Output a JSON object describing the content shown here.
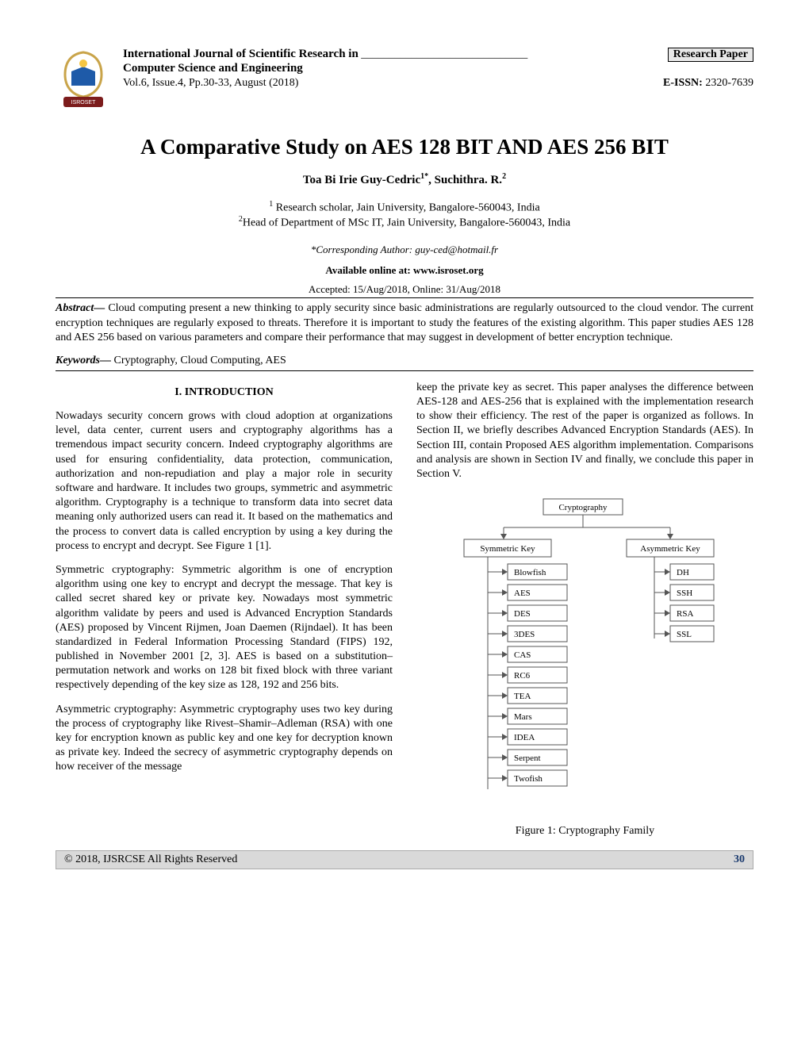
{
  "header": {
    "journal_name": "International Journal of Scientific Research in",
    "underline_fill": "______________________________",
    "paper_type": "Research Paper",
    "field": "Computer Science and Engineering",
    "volume_line": "Vol.6, Issue.4, Pp.30-33, August (2018)",
    "eissn_label": "E-ISSN:",
    "eissn_value": "2320-7639",
    "logo": {
      "ribbon_color": "#7c1c1c",
      "book_color": "#1e5aa8",
      "seal_color": "#c9a44a",
      "ribbon_text": "ISROSET"
    }
  },
  "title": "A Comparative Study on AES 128 BIT AND AES 256 BIT",
  "authors": "Toa Bi Irie Guy-Cedric",
  "author1_sup": "1*",
  "author_sep": ", ",
  "author2": "Suchithra. R.",
  "author2_sup": "2",
  "affil1_sup": "1",
  "affil1": " Research scholar, Jain University, Bangalore-560043, India",
  "affil2_sup": "2",
  "affil2": "Head of Department of MSc IT, Jain University, Bangalore-560043, India",
  "corresponding_label": "*Corresponding Author:   ",
  "corresponding_email": "guy-ced@hotmail.fr",
  "available_at": "Available online at: www.isroset.org",
  "dates": "Accepted: 15/Aug/2018, Online: 31/Aug/2018",
  "abstract_label": "Abstract—",
  "abstract_text": " Cloud computing present a new thinking to apply security since basic administrations are regularly outsourced to the cloud vendor. The current encryption techniques are regularly exposed to threats. Therefore it is important to study the features of the existing algorithm. This paper studies AES 128 and AES 256 based on various parameters and compare their performance that may suggest in development of better encryption technique.",
  "keywords_label": "Keywords—",
  "keywords_text": " Cryptography, Cloud Computing, AES",
  "section1_heading": "I.    INTRODUCTION",
  "col1_p1": "Nowadays security concern grows with cloud adoption at organizations level, data center, current users and cryptography algorithms has a tremendous impact security concern. Indeed cryptography algorithms are used for ensuring confidentiality, data protection, communication, authorization and non-repudiation and play a major role in security software and hardware. It includes two groups, symmetric and asymmetric algorithm. Cryptography is a technique to transform data into secret data meaning only authorized users can read it. It based on the mathematics and the process to convert data is called encryption by using a key during the process to encrypt and decrypt. See Figure 1 [1].",
  "col1_p2": "Symmetric cryptography: Symmetric algorithm is one of encryption algorithm using one key to encrypt and decrypt the message. That key is called secret shared key or private key. Nowadays most symmetric algorithm validate by peers and used is Advanced Encryption Standards (AES) proposed by Vincent Rijmen, Joan Daemen (Rijndael). It has been standardized in Federal Information Processing Standard (FIPS) 192, published in November 2001 [2, 3]. AES is based on a substitution–permutation network and works on 128 bit fixed block with three variant respectively depending of the key size as 128, 192 and 256 bits.",
  "col1_p3": "Asymmetric cryptography: Asymmetric cryptography uses two key during the process of cryptography like Rivest–Shamir–Adleman (RSA) with one key for encryption known as public key and one key for decryption known as private key. Indeed the secrecy of asymmetric cryptography depends on how receiver of the message",
  "col2_p1": "keep the private key as secret. This paper analyses the difference between AES-128 and AES-256 that is explained with the implementation research to show their efficiency. The rest of the paper is organized as follows. In Section II, we briefly describes Advanced Encryption Standards (AES). In Section III, contain Proposed AES algorithm implementation. Comparisons and analysis are shown in Section IV and finally, we conclude this paper in Section V.",
  "diagram": {
    "root": "Cryptography",
    "left_key": "Symmetric Key",
    "right_key": "Asymmetric Key",
    "symmetric": [
      "Blowfish",
      "AES",
      "DES",
      "3DES",
      "CAS",
      "RC6",
      "TEA",
      "Mars",
      "IDEA",
      "Serpent",
      "Twofish"
    ],
    "asymmetric": [
      "DH",
      "SSH",
      "RSA",
      "SSL"
    ],
    "box_border": "#555555",
    "box_bg": "#ffffff",
    "line_color": "#555555",
    "font_size": 11
  },
  "figure_caption": "Figure 1: Cryptography Family",
  "footer": {
    "copyright": "© 2018, IJSRCSE All Rights Reserved",
    "page": "30",
    "bg_color": "#d9d9d9",
    "page_color": "#1a3a6e"
  }
}
